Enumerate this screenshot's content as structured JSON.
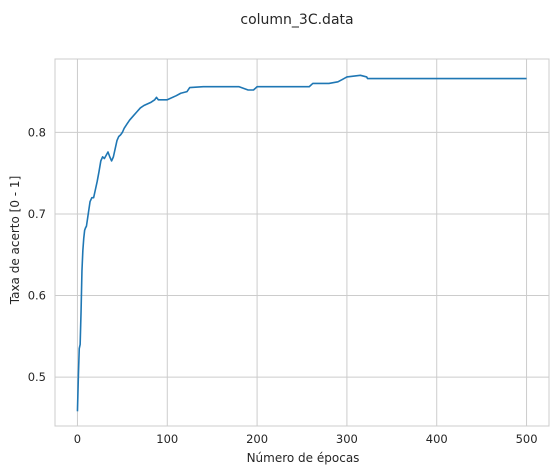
{
  "chart_data": {
    "type": "line",
    "title": "column_3C.data",
    "xlabel": "Número de épocas",
    "ylabel": "Taxa de acerto [0 - 1]",
    "xlim": [
      -25,
      525
    ],
    "ylim": [
      0.44,
      0.89
    ],
    "xticks": [
      0,
      100,
      200,
      300,
      400,
      500
    ],
    "yticks": [
      0.5,
      0.6,
      0.7,
      0.8
    ],
    "xtick_labels": [
      "0",
      "100",
      "200",
      "300",
      "400",
      "500"
    ],
    "ytick_labels": [
      "0.5",
      "0.6",
      "0.7",
      "0.8"
    ],
    "grid": true,
    "line_color": "#1f77b4",
    "series": [
      {
        "x": [
          0,
          1,
          2,
          3,
          4,
          5,
          6,
          7,
          8,
          9,
          10,
          12,
          14,
          16,
          18,
          20,
          22,
          24,
          26,
          28,
          30,
          32,
          34,
          36,
          38,
          40,
          42,
          44,
          46,
          48,
          50,
          52,
          55,
          58,
          62,
          66,
          70,
          74,
          78,
          82,
          86,
          88,
          90,
          93,
          100,
          110,
          115,
          122,
          125,
          140,
          160,
          180,
          190,
          196,
          200,
          230,
          258,
          262,
          280,
          290,
          295,
          300,
          315,
          322,
          323,
          400,
          500
        ],
        "y": [
          0.458,
          0.5,
          0.535,
          0.54,
          0.58,
          0.63,
          0.655,
          0.67,
          0.68,
          0.683,
          0.685,
          0.7,
          0.715,
          0.72,
          0.72,
          0.73,
          0.74,
          0.752,
          0.765,
          0.77,
          0.768,
          0.772,
          0.776,
          0.77,
          0.765,
          0.77,
          0.78,
          0.79,
          0.795,
          0.797,
          0.8,
          0.805,
          0.81,
          0.815,
          0.82,
          0.825,
          0.83,
          0.833,
          0.835,
          0.837,
          0.84,
          0.843,
          0.84,
          0.84,
          0.84,
          0.845,
          0.848,
          0.85,
          0.855,
          0.856,
          0.856,
          0.856,
          0.852,
          0.852,
          0.856,
          0.856,
          0.856,
          0.86,
          0.86,
          0.862,
          0.865,
          0.868,
          0.87,
          0.868,
          0.866,
          0.866,
          0.866
        ]
      }
    ]
  }
}
